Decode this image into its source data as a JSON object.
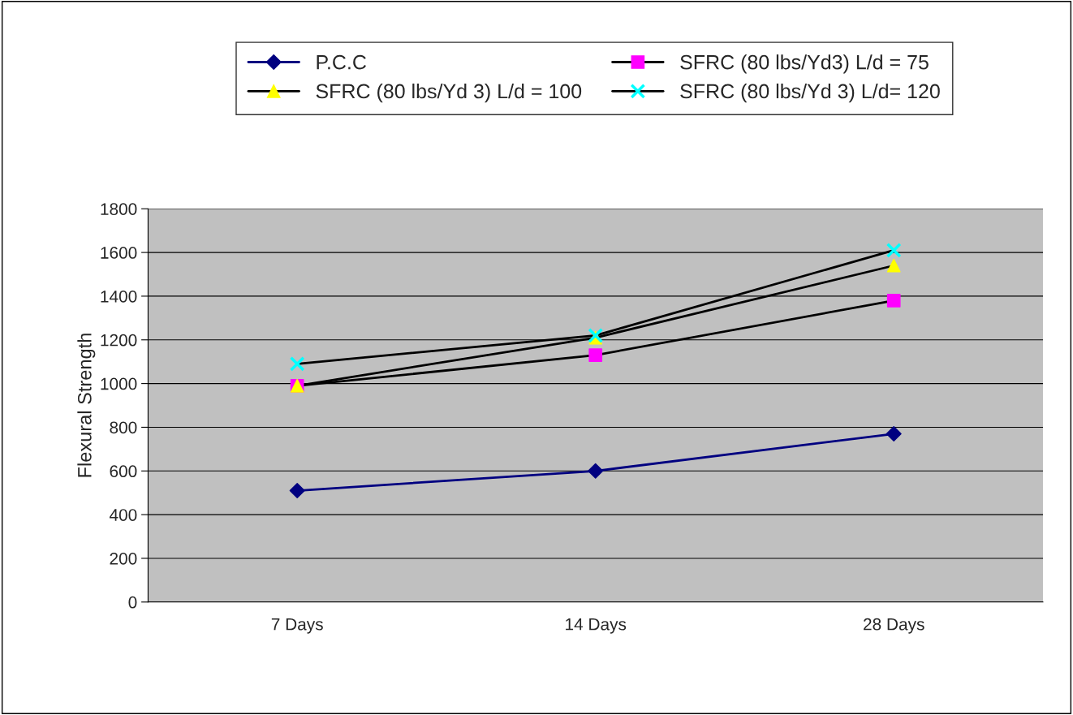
{
  "chart_data": {
    "type": "line",
    "ylabel": "Flexural Strength",
    "categories": [
      "7 Days",
      "14 Days",
      "28 Days"
    ],
    "series": [
      {
        "name": "P.C.C",
        "color": "#000080",
        "colors": [
          "#000080",
          "#000080",
          "#000080"
        ],
        "marker": "diamond",
        "values": [
          510,
          600,
          770
        ]
      },
      {
        "name": "SFRC (80 lbs/Yd3) L/d = 75",
        "color": "#000000",
        "colors": [
          "#ff00ff",
          "#ff00ff",
          "#ff00ff"
        ],
        "marker": "square",
        "values": [
          990,
          1130,
          1380
        ]
      },
      {
        "name": "SFRC (80 lbs/Yd 3) L/d = 100",
        "color": "#000000",
        "colors": [
          "#ffff00",
          "#ffff00",
          "#ffff00"
        ],
        "marker": "triangle",
        "values": [
          990,
          1210,
          1540
        ]
      },
      {
        "name": "SFRC (80 lbs/Yd 3) L/d= 120",
        "color": "#000000",
        "colors": [
          "#00ffff",
          "#00ffff",
          "#00ffff"
        ],
        "marker": "cross",
        "values": [
          1090,
          1220,
          1610
        ]
      }
    ],
    "ylim": [
      0,
      1800
    ],
    "yticks": [
      0,
      200,
      400,
      600,
      800,
      1000,
      1200,
      1400,
      1600,
      1800
    ],
    "grid": "y",
    "legend": "top"
  }
}
